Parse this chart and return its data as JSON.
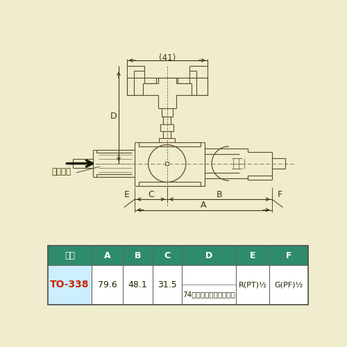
{
  "bg_color": "#f0ecce",
  "line_color": "#5a4a2a",
  "table_header_bg": "#2e8b6e",
  "table_header_fg": "#ffffff",
  "table_row_bg": "#cceeff",
  "table_data_bg": "#ffffff",
  "table_model": "TO-338",
  "table_model_color": "#cc2200",
  "dim_A": "79.6",
  "dim_B": "48.1",
  "dim_C": "31.5",
  "dim_D_sub": "74（アダプター取付時）",
  "dim_E": "R(PT)¹⁄₂",
  "dim_F": "G(PF)¹⁄₂",
  "dim_41": "(41)",
  "label_D": "D",
  "label_A": "A",
  "label_B": "B",
  "label_C": "C",
  "label_E": "E",
  "label_F": "F",
  "flow_label": "流水方向",
  "table_cols": [
    "型番",
    "A",
    "B",
    "C",
    "D",
    "E",
    "F"
  ]
}
